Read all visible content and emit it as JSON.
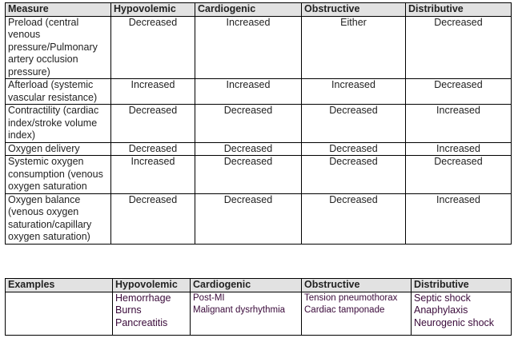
{
  "measures_table": {
    "headers": [
      "Measure",
      "Hypovolemic",
      "Cardiogenic",
      "Obstructive",
      "Distributive"
    ],
    "rows": [
      {
        "measure": "Preload (central venous pressure/Pulmonary artery occlusion pressure)",
        "values": [
          "Decreased",
          "Increased",
          "Either",
          "Decreased"
        ]
      },
      {
        "measure": "Afterload (systemic vascular resistance)",
        "values": [
          "Increased",
          "Increased",
          "Increased",
          "Decreased"
        ]
      },
      {
        "measure": "Contractility (cardiac index/stroke volume index)",
        "values": [
          "Decreased",
          "Decreased",
          "Decreased",
          "Increased"
        ]
      },
      {
        "measure": "Oxygen delivery",
        "values": [
          "Decreased",
          "Decreased",
          "Decreased",
          "Increased"
        ]
      },
      {
        "measure": "Systemic oxygen consumption (venous oxygen saturation",
        "values": [
          "Increased",
          "Decreased",
          "Decreased",
          "Decreased"
        ]
      },
      {
        "measure": "Oxygen balance (venous oxygen saturation/capillary oxygen saturation)",
        "values": [
          "Decreased",
          "Decreased",
          "Decreased",
          "Increased"
        ]
      }
    ]
  },
  "examples_table": {
    "headers": [
      "Examples",
      "Hypovolemic",
      "Cardiogenic",
      "Obstructive",
      "Distributive"
    ],
    "hypovolemic": [
      "Hemorrhage",
      "Burns",
      "Pancreatitis"
    ],
    "cardiogenic": [
      "Post-MI",
      "Malignant dysrhythmia"
    ],
    "obstructive": [
      "Tension pneumothorax",
      "Cardiac tamponade"
    ],
    "distributive": [
      "Septic shock",
      "Anaphylaxis",
      "Neurogenic shock"
    ]
  }
}
